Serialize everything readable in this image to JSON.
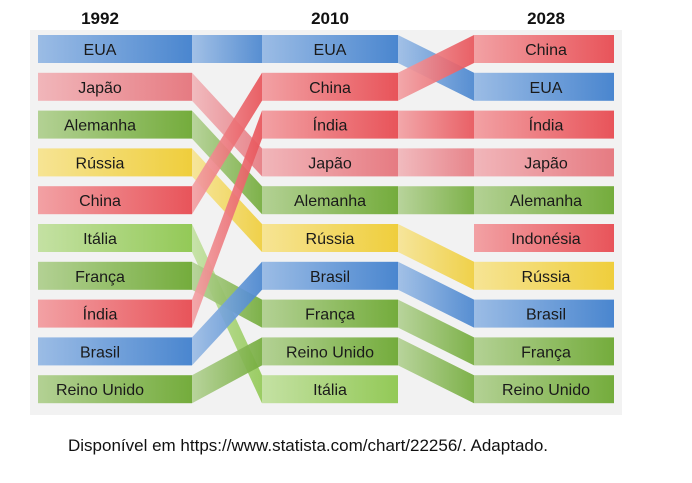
{
  "chart_data": {
    "type": "bump",
    "columns": [
      "1992",
      "2010",
      "2028"
    ],
    "series": [
      {
        "name": "EUA",
        "color": "#4a86cf",
        "ranks": [
          1,
          1,
          2
        ],
        "labels": [
          "EUA",
          "EUA",
          "EUA"
        ]
      },
      {
        "name": "Japão",
        "color": "#e67b82",
        "ranks": [
          2,
          4,
          4
        ],
        "labels": [
          "Japão",
          "Japão",
          "Japão"
        ]
      },
      {
        "name": "Alemanha",
        "color": "#74ac3c",
        "ranks": [
          3,
          5,
          5
        ],
        "labels": [
          "Alemanha",
          "Alemanha",
          "Alemanha"
        ]
      },
      {
        "name": "Rússia",
        "color": "#efce3c",
        "ranks": [
          4,
          6,
          7
        ],
        "labels": [
          "Rússia",
          "Rússia",
          "Rússia"
        ]
      },
      {
        "name": "China",
        "color": "#e8545a",
        "ranks": [
          5,
          2,
          1
        ],
        "labels": [
          "China",
          "China",
          "China"
        ]
      },
      {
        "name": "Itália",
        "color": "#93c957",
        "ranks": [
          6,
          10,
          null
        ],
        "labels": [
          "Itália",
          "Itália",
          ""
        ]
      },
      {
        "name": "França",
        "color": "#74ac3c",
        "ranks": [
          7,
          8,
          9
        ],
        "labels": [
          "França",
          "França",
          "França"
        ]
      },
      {
        "name": "Índia",
        "color": "#e8545a",
        "ranks": [
          8,
          3,
          3
        ],
        "labels": [
          "Índia",
          "Índia",
          "Índia"
        ]
      },
      {
        "name": "Brasil",
        "color": "#4a86cf",
        "ranks": [
          9,
          7,
          8
        ],
        "labels": [
          "Brasil",
          "Brasil",
          "Brasil"
        ]
      },
      {
        "name": "Reino Unido",
        "color": "#74ac3c",
        "ranks": [
          10,
          9,
          10
        ],
        "labels": [
          "Reino Unido",
          "Reino Unido",
          "Reino Unido"
        ]
      },
      {
        "name": "Indonésia",
        "color": "#e8545a",
        "ranks": [
          null,
          null,
          6
        ],
        "labels": [
          "",
          "",
          "Indonésia"
        ]
      }
    ]
  },
  "caption": "Disponível em https://www.statista.com/chart/22256/. Adaptado."
}
